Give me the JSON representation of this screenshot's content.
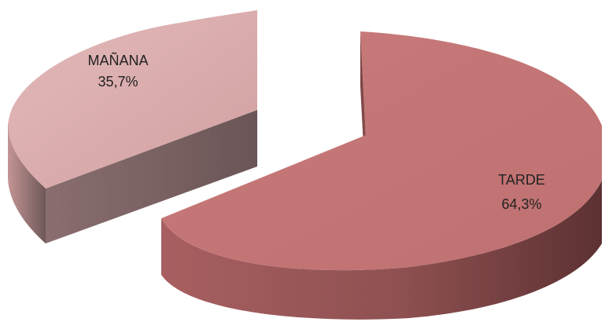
{
  "chart_data": {
    "type": "pie",
    "style": "3d-exploded",
    "slices": [
      {
        "label": "MAÑANA",
        "value": 35.7,
        "value_text": "35,7%",
        "color": "#d9a9aa",
        "side_color": "#7e6667"
      },
      {
        "label": "TARDE",
        "value": 64.3,
        "value_text": "64,3%",
        "color": "#c47575",
        "side_color": "#7c4445"
      }
    ],
    "legend": "none",
    "title": ""
  }
}
